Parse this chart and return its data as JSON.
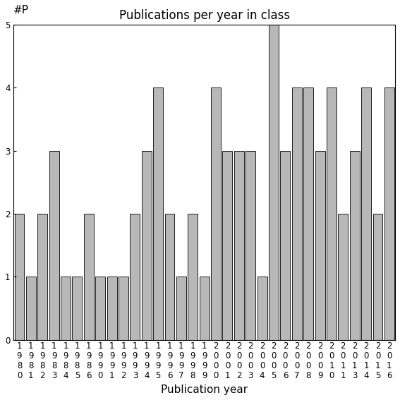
{
  "years": [
    "1980",
    "1981",
    "1982",
    "1983",
    "1984",
    "1985",
    "1986",
    "1990",
    "1991",
    "1992",
    "1993",
    "1994",
    "1995",
    "1996",
    "1997",
    "1998",
    "1999",
    "2000",
    "2001",
    "2002",
    "2003",
    "2004",
    "2005",
    "2006",
    "2007",
    "2008",
    "2009",
    "2010",
    "2011",
    "2013",
    "2014",
    "2015",
    "2016"
  ],
  "values": [
    2,
    1,
    2,
    3,
    1,
    1,
    2,
    1,
    1,
    1,
    2,
    3,
    4,
    2,
    1,
    2,
    1,
    4,
    3,
    3,
    3,
    1,
    5,
    3,
    4,
    4,
    3,
    4,
    2,
    3,
    4,
    2,
    4
  ],
  "bar_color": "#b8b8b8",
  "bar_edgecolor": "#000000",
  "title": "Publications per year in class",
  "xlabel": "Publication year",
  "ylabel_annotation": "#P",
  "ylim": [
    0,
    5
  ],
  "yticks": [
    0,
    1,
    2,
    3,
    4,
    5
  ],
  "background_color": "#ffffff",
  "title_fontsize": 12,
  "label_fontsize": 11,
  "tick_fontsize": 8.5,
  "annotation_fontsize": 11
}
